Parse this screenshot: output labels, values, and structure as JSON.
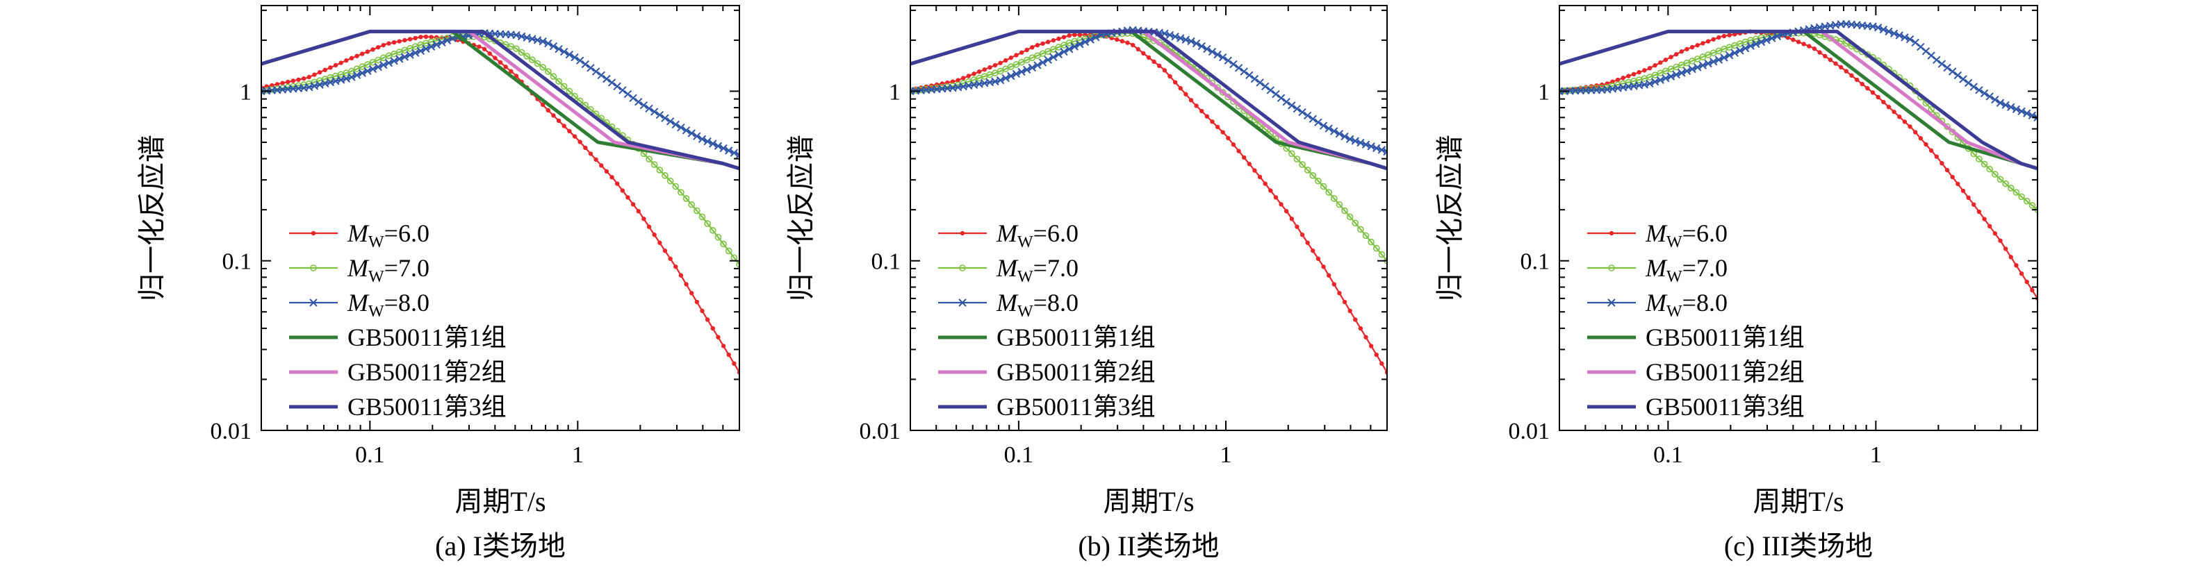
{
  "chart_data": [
    {
      "type": "line",
      "caption": "(a) I类场地",
      "xlabel": "周期T/s",
      "ylabel": "归一化反应谱",
      "xscale": "log",
      "yscale": "log",
      "xlim": [
        0.03,
        6
      ],
      "ylim": [
        0.01,
        3.2
      ],
      "xticks": [
        "0.1",
        "1"
      ],
      "yticks": [
        "0.01",
        "0.1",
        "1"
      ],
      "legend_position": "lower-left",
      "series": [
        {
          "name": "M_W=6.0",
          "color": "#e8262a",
          "marker": "dot",
          "x": [
            0.03,
            0.05,
            0.08,
            0.12,
            0.18,
            0.25,
            0.35,
            0.5,
            0.7,
            1.0,
            1.5,
            2.0,
            3.0,
            4.0,
            6.0
          ],
          "y": [
            1.05,
            1.2,
            1.55,
            1.9,
            2.1,
            2.05,
            1.8,
            1.25,
            0.8,
            0.52,
            0.3,
            0.19,
            0.09,
            0.05,
            0.022
          ]
        },
        {
          "name": "M_W=7.0",
          "color": "#7dc242",
          "marker": "circle",
          "x": [
            0.03,
            0.05,
            0.08,
            0.12,
            0.18,
            0.25,
            0.35,
            0.5,
            0.7,
            1.0,
            1.5,
            2.0,
            3.0,
            4.0,
            6.0
          ],
          "y": [
            1.0,
            1.1,
            1.3,
            1.6,
            1.9,
            2.1,
            2.1,
            1.8,
            1.35,
            0.9,
            0.6,
            0.45,
            0.27,
            0.18,
            0.095
          ]
        },
        {
          "name": "M_W=8.0",
          "color": "#2f56a6",
          "marker": "x",
          "x": [
            0.03,
            0.05,
            0.08,
            0.12,
            0.18,
            0.25,
            0.35,
            0.5,
            0.7,
            1.0,
            1.5,
            2.0,
            3.0,
            4.0,
            6.0
          ],
          "y": [
            1.0,
            1.05,
            1.2,
            1.45,
            1.75,
            2.05,
            2.2,
            2.15,
            1.95,
            1.55,
            1.1,
            0.85,
            0.63,
            0.52,
            0.42
          ]
        },
        {
          "name": "GB50011第1组",
          "color": "#2e7d32",
          "marker": "none",
          "x": [
            0.03,
            0.1,
            0.25,
            1.25,
            5.0,
            6.0
          ],
          "y": [
            1.45,
            2.25,
            2.25,
            0.5,
            0.375,
            0.35
          ]
        },
        {
          "name": "GB50011第2组",
          "color": "#d678c8",
          "marker": "none",
          "x": [
            0.03,
            0.1,
            0.3,
            1.5,
            5.0,
            6.0
          ],
          "y": [
            1.45,
            2.25,
            2.25,
            0.5,
            0.375,
            0.35
          ]
        },
        {
          "name": "GB50011第3组",
          "color": "#3c3b96",
          "marker": "none",
          "x": [
            0.03,
            0.1,
            0.35,
            1.75,
            5.0,
            6.0
          ],
          "y": [
            1.45,
            2.25,
            2.25,
            0.5,
            0.375,
            0.35
          ]
        }
      ]
    },
    {
      "type": "line",
      "caption": "(b) II类场地",
      "xlabel": "周期T/s",
      "ylabel": "归一化反应谱",
      "xscale": "log",
      "yscale": "log",
      "xlim": [
        0.03,
        6
      ],
      "ylim": [
        0.01,
        3.2
      ],
      "xticks": [
        "0.1",
        "1"
      ],
      "yticks": [
        "0.01",
        "0.1",
        "1"
      ],
      "legend_position": "lower-left",
      "series": [
        {
          "name": "M_W=6.0",
          "color": "#e8262a",
          "marker": "dot",
          "x": [
            0.03,
            0.05,
            0.08,
            0.12,
            0.18,
            0.25,
            0.35,
            0.5,
            0.7,
            1.0,
            1.5,
            2.0,
            3.0,
            4.0,
            6.0
          ],
          "y": [
            1.02,
            1.15,
            1.45,
            1.85,
            2.15,
            2.15,
            1.9,
            1.35,
            0.85,
            0.55,
            0.3,
            0.19,
            0.09,
            0.05,
            0.022
          ]
        },
        {
          "name": "M_W=7.0",
          "color": "#7dc242",
          "marker": "circle",
          "x": [
            0.03,
            0.05,
            0.08,
            0.12,
            0.18,
            0.25,
            0.35,
            0.5,
            0.7,
            1.0,
            1.5,
            2.0,
            3.0,
            4.0,
            6.0
          ],
          "y": [
            1.0,
            1.08,
            1.3,
            1.6,
            1.95,
            2.15,
            2.2,
            1.9,
            1.4,
            0.95,
            0.62,
            0.45,
            0.27,
            0.18,
            0.1
          ]
        },
        {
          "name": "M_W=8.0",
          "color": "#2f56a6",
          "marker": "x",
          "x": [
            0.03,
            0.05,
            0.08,
            0.12,
            0.18,
            0.25,
            0.35,
            0.5,
            0.7,
            1.0,
            1.5,
            2.0,
            3.0,
            4.0,
            6.0
          ],
          "y": [
            1.0,
            1.05,
            1.15,
            1.4,
            1.8,
            2.15,
            2.3,
            2.2,
            1.95,
            1.55,
            1.1,
            0.85,
            0.62,
            0.52,
            0.44
          ]
        },
        {
          "name": "GB50011第1组",
          "color": "#2e7d32",
          "marker": "none",
          "x": [
            0.03,
            0.1,
            0.35,
            1.75,
            5.0,
            6.0
          ],
          "y": [
            1.45,
            2.25,
            2.25,
            0.5,
            0.375,
            0.35
          ]
        },
        {
          "name": "GB50011第2组",
          "color": "#d678c8",
          "marker": "none",
          "x": [
            0.03,
            0.1,
            0.4,
            2.0,
            5.0,
            6.0
          ],
          "y": [
            1.45,
            2.25,
            2.25,
            0.5,
            0.375,
            0.35
          ]
        },
        {
          "name": "GB50011第3组",
          "color": "#3c3b96",
          "marker": "none",
          "x": [
            0.03,
            0.1,
            0.45,
            2.25,
            5.0,
            6.0
          ],
          "y": [
            1.45,
            2.25,
            2.25,
            0.5,
            0.375,
            0.35
          ]
        }
      ]
    },
    {
      "type": "line",
      "caption": "(c) III类场地",
      "xlabel": "周期T/s",
      "ylabel": "归一化反应谱",
      "xscale": "log",
      "yscale": "log",
      "xlim": [
        0.03,
        6
      ],
      "ylim": [
        0.01,
        3.2
      ],
      "xticks": [
        "0.1",
        "1"
      ],
      "yticks": [
        "0.01",
        "0.1",
        "1"
      ],
      "legend_position": "lower-left",
      "series": [
        {
          "name": "M_W=6.0",
          "color": "#e8262a",
          "marker": "dot",
          "x": [
            0.03,
            0.05,
            0.08,
            0.12,
            0.18,
            0.25,
            0.35,
            0.5,
            0.7,
            1.0,
            1.5,
            2.0,
            3.0,
            4.0,
            6.0
          ],
          "y": [
            1.0,
            1.1,
            1.35,
            1.75,
            2.1,
            2.25,
            2.15,
            1.8,
            1.35,
            0.95,
            0.6,
            0.4,
            0.21,
            0.13,
            0.06
          ]
        },
        {
          "name": "M_W=7.0",
          "color": "#7dc242",
          "marker": "circle",
          "x": [
            0.03,
            0.05,
            0.08,
            0.12,
            0.18,
            0.25,
            0.35,
            0.5,
            0.7,
            1.0,
            1.5,
            2.0,
            3.0,
            4.0,
            6.0
          ],
          "y": [
            1.0,
            1.05,
            1.2,
            1.45,
            1.75,
            2.0,
            2.2,
            2.2,
            1.95,
            1.55,
            1.05,
            0.7,
            0.42,
            0.3,
            0.2
          ]
        },
        {
          "name": "M_W=8.0",
          "color": "#2f56a6",
          "marker": "x",
          "x": [
            0.03,
            0.05,
            0.08,
            0.12,
            0.18,
            0.25,
            0.35,
            0.5,
            0.7,
            1.0,
            1.5,
            2.0,
            3.0,
            4.0,
            6.0
          ],
          "y": [
            1.0,
            1.02,
            1.1,
            1.3,
            1.55,
            1.85,
            2.15,
            2.35,
            2.5,
            2.4,
            2.0,
            1.5,
            1.05,
            0.85,
            0.7
          ]
        },
        {
          "name": "GB50011第1组",
          "color": "#2e7d32",
          "marker": "none",
          "x": [
            0.03,
            0.1,
            0.45,
            2.25,
            5.0,
            6.0
          ],
          "y": [
            1.45,
            2.25,
            2.25,
            0.5,
            0.375,
            0.35
          ]
        },
        {
          "name": "GB50011第2组",
          "color": "#d678c8",
          "marker": "none",
          "x": [
            0.03,
            0.1,
            0.55,
            2.75,
            5.0,
            6.0
          ],
          "y": [
            1.45,
            2.25,
            2.25,
            0.5,
            0.375,
            0.35
          ]
        },
        {
          "name": "GB50011第3组",
          "color": "#3c3b96",
          "marker": "none",
          "x": [
            0.03,
            0.1,
            0.65,
            3.25,
            5.0,
            6.0
          ],
          "y": [
            1.45,
            2.25,
            2.25,
            0.5,
            0.375,
            0.35
          ]
        }
      ]
    }
  ]
}
